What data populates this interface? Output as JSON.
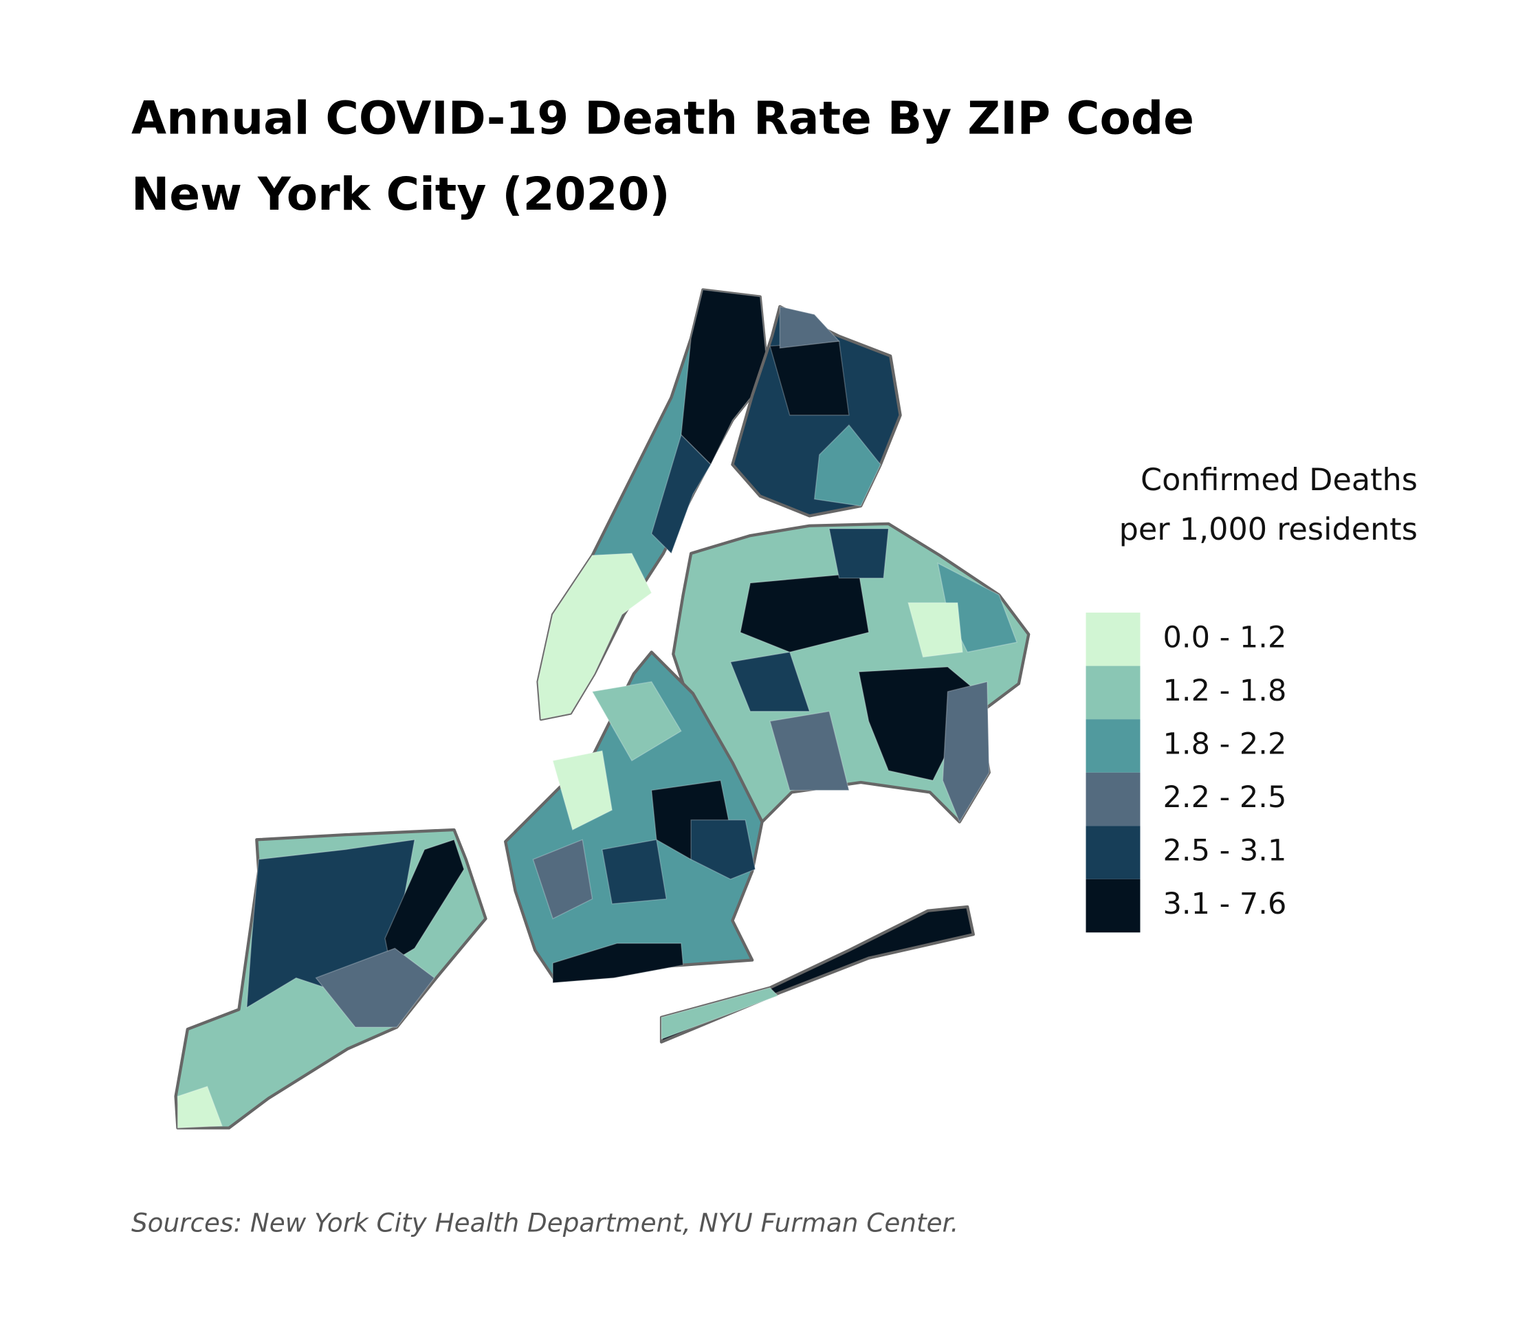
{
  "header": {
    "title_lines": [
      "Annual COVID-19 Death Rate By ZIP Code",
      "New York City (2020)"
    ]
  },
  "legend": {
    "title_lines": [
      "Confirmed Deaths",
      "per 1,000 residents"
    ],
    "items": [
      {
        "label": "0.0 - 1.2",
        "color": "#d1f5d3"
      },
      {
        "label": "1.2 - 1.8",
        "color": "#8ac6b4"
      },
      {
        "label": "1.8 - 2.2",
        "color": "#519a9e"
      },
      {
        "label": "2.2 - 2.5",
        "color": "#546b7f"
      },
      {
        "label": "2.5 - 3.1",
        "color": "#173e58"
      },
      {
        "label": "3.1 - 7.6",
        "color": "#03121f"
      }
    ]
  },
  "footer": {
    "source": "Sources: New York City Health Department, NYU Furman Center."
  }
}
